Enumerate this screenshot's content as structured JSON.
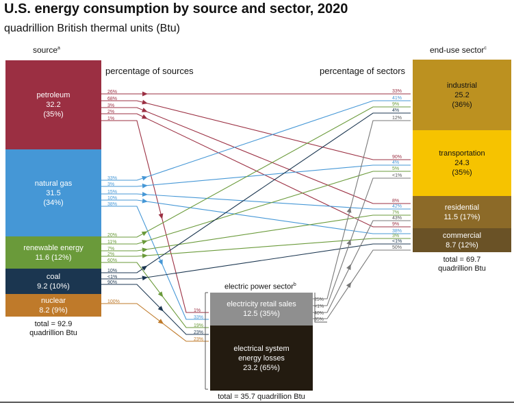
{
  "title": "U.S. energy consumption by source and sector, 2020",
  "subtitle": "quadrillion British thermal units (Btu)",
  "headers": {
    "source": "source",
    "source_sup": "a",
    "end_use": "end-use sector",
    "end_use_sup": "c",
    "pct_sources": "percentage of sources",
    "pct_sectors": "percentage of sectors",
    "electric_power": "electric power sector",
    "electric_power_sup": "b"
  },
  "sources": [
    {
      "name": "petroleum",
      "value": "32.2",
      "pct": "(35%)",
      "color": "#9b2f42"
    },
    {
      "name": "natural gas",
      "value": "31.5",
      "pct": "(34%)",
      "color": "#4597d6"
    },
    {
      "name": "renewable energy",
      "value": "11.6 (12%)",
      "color": "#6a9a3a"
    },
    {
      "name": "coal",
      "value": "9.2 (10%)",
      "color": "#1b3650"
    },
    {
      "name": "nuclear",
      "value": "8.2 (9%)",
      "color": "#bf7a2a"
    }
  ],
  "sectors": [
    {
      "name": "industrial",
      "value": "25.2",
      "pct": "(36%)",
      "color": "#bc9120"
    },
    {
      "name": "transportation",
      "value": "24.3",
      "pct": "(35%)",
      "color": "#f6c300"
    },
    {
      "name": "residential",
      "value": "11.5 (17%)",
      "color": "#8c6a28"
    },
    {
      "name": "commercial",
      "value": "8.7 (12%)",
      "color": "#6a5226"
    }
  ],
  "electric": {
    "retail_label": "electricity retail sales",
    "retail_value": "12.5 (35%)",
    "losses_label": "electrical system energy losses",
    "losses_value": "23.2 (65%)",
    "total": "total = 35.7 quadrillion Btu"
  },
  "source_total": {
    "line1": "total = 92.9",
    "line2": "quadrillion Btu"
  },
  "sector_total": {
    "line1": "total = 69.7",
    "line2": "quadrillion Btu"
  },
  "flows": [
    {
      "from": "petroleum",
      "to": "industrial",
      "src_label": "26%",
      "dst_label": "33%"
    },
    {
      "from": "petroleum",
      "to": "transportation",
      "src_label": "68%",
      "dst_label": "90%"
    },
    {
      "from": "petroleum",
      "to": "residential",
      "src_label": "3%",
      "dst_label": "8%"
    },
    {
      "from": "petroleum",
      "to": "commercial",
      "src_label": "2%",
      "dst_label": "9%"
    },
    {
      "from": "petroleum",
      "to": "electric power",
      "src_label": "1%",
      "dst_label": "1%"
    },
    {
      "from": "natural gas",
      "to": "industrial",
      "src_label": "33%",
      "dst_label": "41%"
    },
    {
      "from": "natural gas",
      "to": "transportation",
      "src_label": "3%",
      "dst_label": "4%"
    },
    {
      "from": "natural gas",
      "to": "residential",
      "src_label": "15%",
      "dst_label": "42%"
    },
    {
      "from": "natural gas",
      "to": "commercial",
      "src_label": "10%",
      "dst_label": "38%"
    },
    {
      "from": "natural gas",
      "to": "electric power",
      "src_label": "38%",
      "dst_label": "33%"
    },
    {
      "from": "renewable energy",
      "to": "industrial",
      "src_label": "20%",
      "dst_label": "9%"
    },
    {
      "from": "renewable energy",
      "to": "transportation",
      "src_label": "11%",
      "dst_label": "5%"
    },
    {
      "from": "renewable energy",
      "to": "residential",
      "src_label": "7%",
      "dst_label": "7%"
    },
    {
      "from": "renewable energy",
      "to": "commercial",
      "src_label": "2%",
      "dst_label": "3%"
    },
    {
      "from": "renewable energy",
      "to": "electric power",
      "src_label": "60%",
      "dst_label": "19%"
    },
    {
      "from": "coal",
      "to": "industrial",
      "src_label": "10%",
      "dst_label": "4%"
    },
    {
      "from": "coal",
      "to": "commercial",
      "src_label": "<1%",
      "dst_label": "<1%"
    },
    {
      "from": "coal",
      "to": "electric power",
      "src_label": "90%",
      "dst_label": "23%"
    },
    {
      "from": "nuclear",
      "to": "electric power",
      "src_label": "100%",
      "dst_label": "23%"
    },
    {
      "from": "electric power",
      "to": "industrial",
      "src_label": "25%",
      "dst_label": "12%"
    },
    {
      "from": "electric power",
      "to": "transportation",
      "src_label": "<1%",
      "dst_label": "<1%"
    },
    {
      "from": "electric power",
      "to": "residential",
      "src_label": "40%",
      "dst_label": "43%"
    },
    {
      "from": "electric power",
      "to": "commercial",
      "src_label": "35%",
      "dst_label": "50%"
    }
  ]
}
